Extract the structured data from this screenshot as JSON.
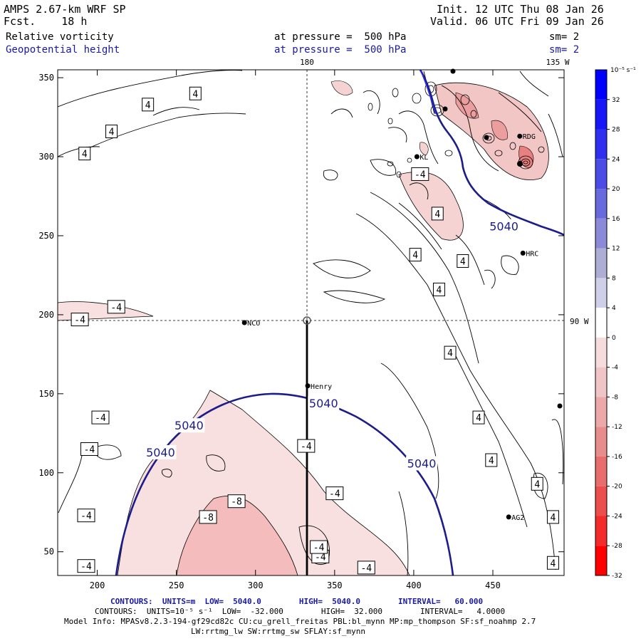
{
  "header": {
    "model": "AMPS 2.67-km WRF SP",
    "fcst": "Fcst.    18 h",
    "init": "Init. 12 UTC Thu 08 Jan 26",
    "valid": "Valid. 06 UTC Fri 09 Jan 26",
    "field1": "Relative vorticity",
    "field2": "Geopotential height",
    "pressure1": "at pressure =  500 hPa",
    "pressure2": "at pressure =  500 hPa",
    "sm1": "sm= 2",
    "sm2": "sm= 2"
  },
  "map": {
    "meridian_label": "180",
    "meridian_135": "135 W",
    "parallel_label": "90 W",
    "x_ticks": [
      "200",
      "250",
      "300",
      "350",
      "400",
      "450"
    ],
    "y_ticks": [
      "350",
      "300",
      "250",
      "200",
      "150",
      "100",
      "50"
    ],
    "stations": [
      {
        "name": "NCO",
        "x": 293,
        "y": 195
      },
      {
        "name": "Henry",
        "x": 333,
        "y": 155
      },
      {
        "name": "RDG",
        "x": 467,
        "y": 313
      },
      {
        "name": "HRC",
        "x": 469,
        "y": 239
      },
      {
        "name": "AG2",
        "x": 460,
        "y": 72
      },
      {
        "name": "KL",
        "x": 402,
        "y": 300
      }
    ],
    "contour_labels": [
      {
        "text": "4",
        "x": 232,
        "y": 333
      },
      {
        "text": "4",
        "x": 262,
        "y": 340
      },
      {
        "text": "4",
        "x": 209,
        "y": 316
      },
      {
        "text": "4",
        "x": 192,
        "y": 302
      },
      {
        "text": "-4",
        "x": 212,
        "y": 205
      },
      {
        "text": "-4",
        "x": 189,
        "y": 197
      },
      {
        "text": "-4",
        "x": 404,
        "y": 289
      },
      {
        "text": "4",
        "x": 415,
        "y": 264
      },
      {
        "text": "4",
        "x": 401,
        "y": 238
      },
      {
        "text": "4",
        "x": 431,
        "y": 234
      },
      {
        "text": "4",
        "x": 416,
        "y": 216
      },
      {
        "text": "4",
        "x": 423,
        "y": 176
      },
      {
        "text": "4",
        "x": 441,
        "y": 135
      },
      {
        "text": "4",
        "x": 449,
        "y": 108
      },
      {
        "text": "4",
        "x": 478,
        "y": 93
      },
      {
        "text": "4",
        "x": 488,
        "y": 72
      },
      {
        "text": "4",
        "x": 488,
        "y": 43
      },
      {
        "text": "-4",
        "x": 202,
        "y": 135
      },
      {
        "text": "-4",
        "x": 195,
        "y": 115
      },
      {
        "text": "-4",
        "x": 332,
        "y": 117
      },
      {
        "text": "-4",
        "x": 350,
        "y": 87
      },
      {
        "text": "-8",
        "x": 288,
        "y": 82
      },
      {
        "text": "-8",
        "x": 270,
        "y": 72
      },
      {
        "text": "-4",
        "x": 193,
        "y": 73
      },
      {
        "text": "-4",
        "x": 341,
        "y": 47
      },
      {
        "text": "-4",
        "x": 370,
        "y": 40
      },
      {
        "text": "-4",
        "x": 193,
        "y": 41
      },
      {
        "text": "-4",
        "x": 340,
        "y": 53
      }
    ],
    "height_labels": [
      {
        "text": "5040",
        "x": 457,
        "y": 256
      },
      {
        "text": "5040",
        "x": 343,
        "y": 144
      },
      {
        "text": "5040",
        "x": 258,
        "y": 130
      },
      {
        "text": "5040",
        "x": 240,
        "y": 113
      },
      {
        "text": "5040",
        "x": 405,
        "y": 106
      }
    ]
  },
  "colorbar": {
    "unit": "10⁻⁵ s⁻¹",
    "labels": [
      "32",
      "28",
      "24",
      "20",
      "16",
      "12",
      "8",
      "4",
      "0",
      "-4",
      "-8",
      "-12",
      "-16",
      "-20",
      "-24",
      "-28",
      "-32"
    ],
    "colors": [
      "#0000ff",
      "#1616f8",
      "#2f2fef",
      "#4b4be6",
      "#6969de",
      "#8a8ad8",
      "#adadd6",
      "#cfcfe8",
      "#ffffff",
      "#f6dddd",
      "#f0c5c5",
      "#eba9a9",
      "#e88d8d",
      "#e86d6d",
      "#ec4d4d",
      "#f32b2b",
      "#ff0000"
    ]
  },
  "footer": {
    "line1": "CONTOURS:  UNITS=m  LOW=  5040.0        HIGH=  5040.0        INTERVAL=   60.000",
    "line2": "CONTOURS:  UNITS=10⁻⁵ s⁻¹  LOW=  -32.000        HIGH=  32.000        INTERVAL=   4.0000",
    "line3": "Model Info: MPASv8.2.3-194-gf29cd82c CU:cu_grell_freitas PBL:bl_mynn MP:mp_thompson SF:sf_noahmp 2.7",
    "line4": "LW:rrtmg_lw SW:rrtmg_sw SFLAY:sf_mynn"
  },
  "accent_colors": {
    "height_contour": "#1c1c8c",
    "vort_neg": "#f3c9c9",
    "vort_neg_strong": "#eea8a8"
  }
}
